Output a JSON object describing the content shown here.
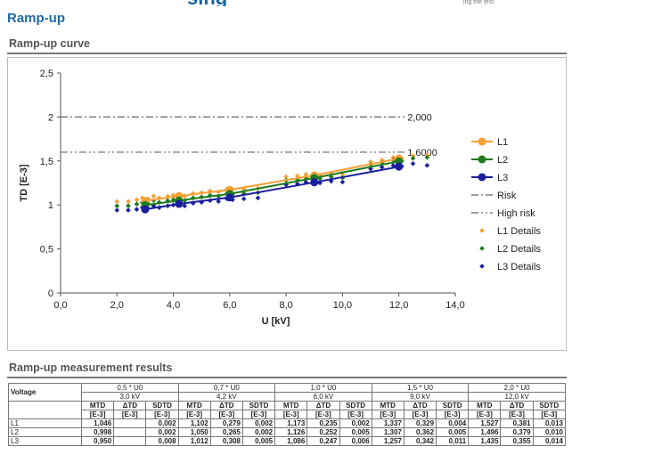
{
  "page": {
    "title": "Ramp-up",
    "header_fragment": "sing",
    "header_small_fragment": "ing the test"
  },
  "chart_section": {
    "title": "Ramp-up curve"
  },
  "results_section": {
    "title": "Ramp-up measurement results"
  },
  "chart_data": {
    "type": "line",
    "xlabel": "U [kV]",
    "ylabel": "TD [E-3]",
    "xlim": [
      0,
      14
    ],
    "ylim": [
      0,
      2.5
    ],
    "x_ticks": [
      "0,0",
      "2,0",
      "4,0",
      "6,0",
      "8,0",
      "10,0",
      "12,0",
      "14,0"
    ],
    "y_ticks": [
      "0",
      "0,5",
      "1",
      "1,5",
      "2",
      "2,5"
    ],
    "grid": false,
    "legend_position": "right",
    "series": [
      {
        "name": "L1",
        "color": "#f7a035",
        "marker": "circle",
        "x": [
          3.0,
          4.2,
          6.0,
          9.0,
          12.0
        ],
        "y": [
          1.046,
          1.102,
          1.173,
          1.337,
          1.527
        ]
      },
      {
        "name": "L2",
        "color": "#1e7b1e",
        "marker": "circle",
        "x": [
          3.0,
          4.2,
          6.0,
          9.0,
          12.0
        ],
        "y": [
          0.998,
          1.05,
          1.126,
          1.307,
          1.496
        ]
      },
      {
        "name": "L3",
        "color": "#1a1f9c",
        "marker": "circle",
        "x": [
          3.0,
          4.2,
          6.0,
          9.0,
          12.0
        ],
        "y": [
          0.95,
          1.012,
          1.086,
          1.257,
          1.435
        ]
      }
    ],
    "lines": [
      {
        "name": "Risk",
        "value": 2.0,
        "label": "2,000",
        "dash": "8 3 2 3",
        "color": "#666666"
      },
      {
        "name": "High risk",
        "value": 1.6,
        "label": "1,6000",
        "dash": "8 3 2 3 2 3",
        "color": "#666666"
      }
    ],
    "detail_series": [
      {
        "name": "L1 Details",
        "color": "#f7a035",
        "x": [
          2.0,
          2.4,
          2.7,
          2.9,
          3.1,
          3.3,
          3.5,
          3.8,
          4.0,
          4.2,
          4.4,
          4.7,
          5.0,
          5.3,
          5.6,
          5.9,
          6.1,
          6.5,
          7.0,
          8.0,
          8.4,
          8.7,
          9.0,
          9.2,
          9.6,
          10.0,
          11.0,
          11.4,
          11.8,
          12.0,
          12.1,
          12.5,
          13.0
        ],
        "y": [
          1.04,
          1.04,
          1.06,
          1.08,
          1.07,
          1.1,
          1.08,
          1.1,
          1.11,
          1.12,
          1.1,
          1.13,
          1.14,
          1.16,
          1.15,
          1.18,
          1.17,
          1.18,
          1.19,
          1.32,
          1.33,
          1.35,
          1.35,
          1.34,
          1.36,
          1.35,
          1.49,
          1.51,
          1.54,
          1.55,
          1.53,
          1.56,
          1.57
        ]
      },
      {
        "name": "L2 Details",
        "color": "#1e7b1e",
        "x": [
          2.0,
          2.4,
          2.7,
          2.9,
          3.1,
          3.3,
          3.5,
          3.8,
          4.0,
          4.2,
          4.4,
          4.7,
          5.0,
          5.3,
          5.6,
          5.9,
          6.1,
          6.5,
          7.0,
          8.0,
          8.4,
          8.7,
          9.0,
          9.2,
          9.6,
          10.0,
          11.0,
          11.4,
          11.8,
          12.0,
          12.1,
          12.5,
          13.0
        ],
        "y": [
          0.99,
          0.99,
          1.01,
          1.03,
          1.02,
          1.05,
          1.03,
          1.05,
          1.06,
          1.07,
          1.05,
          1.08,
          1.09,
          1.11,
          1.1,
          1.13,
          1.12,
          1.13,
          1.14,
          1.28,
          1.29,
          1.31,
          1.31,
          1.3,
          1.32,
          1.31,
          1.46,
          1.48,
          1.51,
          1.52,
          1.5,
          1.53,
          1.54
        ]
      },
      {
        "name": "L3 Details",
        "color": "#1a1f9c",
        "x": [
          2.0,
          2.4,
          2.7,
          2.9,
          3.1,
          3.3,
          3.5,
          3.8,
          4.0,
          4.2,
          4.4,
          4.7,
          5.0,
          5.3,
          5.6,
          5.9,
          6.1,
          6.5,
          7.0,
          8.0,
          8.4,
          8.7,
          9.0,
          9.2,
          9.6,
          10.0,
          11.0,
          11.4,
          11.8,
          12.0,
          12.1,
          12.5,
          13.0
        ],
        "y": [
          0.94,
          0.94,
          0.95,
          0.97,
          0.96,
          0.99,
          0.97,
          0.99,
          1.0,
          1.01,
          0.99,
          1.02,
          1.03,
          1.05,
          1.04,
          1.07,
          1.06,
          1.07,
          1.08,
          1.23,
          1.24,
          1.26,
          1.26,
          1.25,
          1.27,
          1.26,
          1.41,
          1.43,
          1.45,
          1.46,
          1.44,
          1.47,
          1.45
        ]
      }
    ]
  },
  "table": {
    "voltage_label": "Voltage",
    "groups": [
      {
        "factor": "0,5 * U0",
        "kv": "3,0 kV"
      },
      {
        "factor": "0,7 * U0",
        "kv": "4,2 kV"
      },
      {
        "factor": "1,0 * U0",
        "kv": "6,0 kV"
      },
      {
        "factor": "1,5 * U0",
        "kv": "9,0 kV"
      },
      {
        "factor": "2,0 * U0",
        "kv": "12,0 kV"
      }
    ],
    "col_headers": [
      "MTD",
      "ΔTD",
      "SDTD"
    ],
    "units": [
      "[E-3]",
      "[E-3]",
      "[E-3]"
    ],
    "rows": [
      {
        "label": "L1",
        "cells": [
          "1,046",
          "",
          "0,002",
          "1,102",
          "0,279",
          "0,002",
          "1,173",
          "0,235",
          "0,002",
          "1,337",
          "0,329",
          "0,004",
          "1,527",
          "0,381",
          "0,013"
        ]
      },
      {
        "label": "L2",
        "cells": [
          "0,998",
          "",
          "0,002",
          "1,050",
          "0,265",
          "0,002",
          "1,126",
          "0,252",
          "0,005",
          "1,307",
          "0,362",
          "0,005",
          "1,496",
          "0,379",
          "0,010"
        ]
      },
      {
        "label": "L3",
        "cells": [
          "0,950",
          "",
          "0,008",
          "1,012",
          "0,308",
          "0,005",
          "1,086",
          "0,247",
          "0,006",
          "1,257",
          "0,342",
          "0,011",
          "1,435",
          "0,355",
          "0,014"
        ]
      }
    ]
  }
}
